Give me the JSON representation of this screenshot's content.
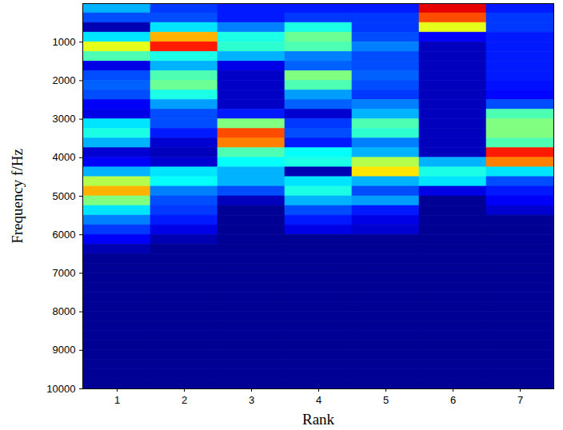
{
  "chart_data": {
    "type": "heatmap",
    "x_label": "Rank",
    "y_label": "Frequency f/Hz",
    "x": [
      1,
      2,
      3,
      4,
      5,
      6,
      7
    ],
    "y_bins": [
      0,
      250,
      500,
      750,
      1000,
      1250,
      1500,
      1750,
      2000,
      2250,
      2500,
      2750,
      3000,
      3250,
      3500,
      3750,
      4000,
      4250,
      4500,
      4750,
      5000,
      5250,
      5500,
      5750,
      6000,
      6250,
      6500,
      6750,
      7000,
      7250,
      7500,
      7750,
      8000,
      8250,
      8500,
      8750,
      9000,
      9250,
      9500,
      9750,
      10000
    ],
    "cells": [
      [
        0.3,
        0.2,
        0.05,
        0.35,
        0.6,
        0.45,
        0.1,
        0.2,
        0.22,
        0.2,
        0.12,
        0.1,
        0.35,
        0.4,
        0.3,
        0.08,
        0.12,
        0.3,
        0.55,
        0.7,
        0.5,
        0.35,
        0.25,
        0.18,
        0.12,
        0.05,
        0.02,
        0.02,
        0.02,
        0.02,
        0.02,
        0.02,
        0.02,
        0.02,
        0.02,
        0.02,
        0.02,
        0.02,
        0.02,
        0.02
      ],
      [
        0.18,
        0.2,
        0.35,
        0.7,
        0.85,
        0.4,
        0.3,
        0.45,
        0.48,
        0.4,
        0.28,
        0.2,
        0.2,
        0.15,
        0.08,
        0.06,
        0.08,
        0.35,
        0.38,
        0.25,
        0.2,
        0.18,
        0.15,
        0.1,
        0.05,
        0.02,
        0.02,
        0.02,
        0.02,
        0.02,
        0.02,
        0.02,
        0.02,
        0.02,
        0.02,
        0.02,
        0.02,
        0.02,
        0.02,
        0.02
      ],
      [
        0.15,
        0.15,
        0.25,
        0.4,
        0.42,
        0.3,
        0.1,
        0.07,
        0.07,
        0.07,
        0.07,
        0.15,
        0.5,
        0.8,
        0.75,
        0.45,
        0.38,
        0.3,
        0.3,
        0.2,
        0.06,
        0.02,
        0.02,
        0.02,
        0.02,
        0.02,
        0.02,
        0.02,
        0.02,
        0.02,
        0.02,
        0.02,
        0.02,
        0.02,
        0.02,
        0.02,
        0.02,
        0.02,
        0.02,
        0.02
      ],
      [
        0.15,
        0.18,
        0.4,
        0.48,
        0.45,
        0.25,
        0.22,
        0.5,
        0.45,
        0.28,
        0.22,
        0.08,
        0.18,
        0.2,
        0.15,
        0.38,
        0.4,
        0.05,
        0.35,
        0.4,
        0.3,
        0.2,
        0.15,
        0.1,
        0.02,
        0.02,
        0.02,
        0.02,
        0.02,
        0.02,
        0.02,
        0.02,
        0.02,
        0.02,
        0.02,
        0.02,
        0.02,
        0.02,
        0.02,
        0.02
      ],
      [
        0.15,
        0.18,
        0.18,
        0.2,
        0.25,
        0.2,
        0.2,
        0.22,
        0.2,
        0.18,
        0.25,
        0.3,
        0.45,
        0.42,
        0.25,
        0.3,
        0.55,
        0.65,
        0.3,
        0.2,
        0.28,
        0.15,
        0.1,
        0.08,
        0.02,
        0.02,
        0.02,
        0.02,
        0.02,
        0.02,
        0.02,
        0.02,
        0.02,
        0.02,
        0.02,
        0.02,
        0.02,
        0.02,
        0.02,
        0.02
      ],
      [
        0.9,
        0.8,
        0.6,
        0.12,
        0.06,
        0.06,
        0.06,
        0.06,
        0.06,
        0.06,
        0.06,
        0.06,
        0.06,
        0.06,
        0.06,
        0.06,
        0.3,
        0.4,
        0.35,
        0.1,
        0.02,
        0.02,
        0.02,
        0.02,
        0.02,
        0.02,
        0.02,
        0.02,
        0.02,
        0.02,
        0.02,
        0.02,
        0.02,
        0.02,
        0.02,
        0.02,
        0.02,
        0.02,
        0.02,
        0.02
      ],
      [
        0.15,
        0.18,
        0.18,
        0.15,
        0.15,
        0.15,
        0.15,
        0.15,
        0.14,
        0.13,
        0.2,
        0.45,
        0.5,
        0.5,
        0.45,
        0.85,
        0.75,
        0.35,
        0.2,
        0.15,
        0.12,
        0.08,
        0.02,
        0.02,
        0.02,
        0.02,
        0.02,
        0.02,
        0.02,
        0.02,
        0.02,
        0.02,
        0.02,
        0.02,
        0.02,
        0.02,
        0.02,
        0.02,
        0.02,
        0.02
      ]
    ],
    "ylim": [
      0,
      10000
    ],
    "yticks": [
      1000,
      2000,
      3000,
      4000,
      5000,
      6000,
      7000,
      8000,
      9000,
      10000
    ],
    "zlim": [
      0,
      1
    ],
    "color": "jet"
  }
}
